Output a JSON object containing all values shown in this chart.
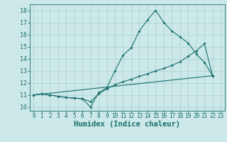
{
  "title": "",
  "xlabel": "Humidex (Indice chaleur)",
  "background_color": "#cce8e8",
  "grid_color": "#b0d4d4",
  "line_color": "#1a7070",
  "xlim": [
    -0.5,
    23.5
  ],
  "ylim": [
    9.7,
    18.5
  ],
  "xticks": [
    0,
    1,
    2,
    3,
    4,
    5,
    6,
    7,
    8,
    9,
    10,
    11,
    12,
    13,
    14,
    15,
    16,
    17,
    18,
    19,
    20,
    21,
    22,
    23
  ],
  "yticks": [
    10,
    11,
    12,
    13,
    14,
    15,
    16,
    17,
    18
  ],
  "line1_y": [
    11.0,
    11.1,
    11.0,
    10.9,
    10.8,
    10.75,
    10.7,
    10.0,
    11.2,
    11.6,
    13.0,
    14.3,
    14.9,
    16.3,
    17.2,
    18.0,
    17.0,
    16.3,
    15.8,
    15.3,
    14.4,
    13.7,
    12.6,
    null
  ],
  "line2_y": [
    11.0,
    11.1,
    11.0,
    10.9,
    10.8,
    10.75,
    10.7,
    10.45,
    11.1,
    11.5,
    11.85,
    12.1,
    12.3,
    12.55,
    12.75,
    13.0,
    13.2,
    13.45,
    13.75,
    14.2,
    14.65,
    15.25,
    12.6,
    null
  ],
  "line3_y": [
    11.0,
    12.6
  ],
  "line3_x": [
    0,
    22
  ],
  "tick_fontsize": 5.5,
  "xlabel_fontsize": 7.5
}
